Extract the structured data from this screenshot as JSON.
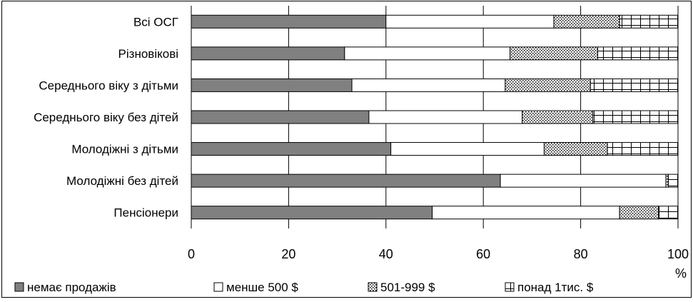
{
  "chart_data": {
    "type": "bar",
    "orientation": "horizontal",
    "stacked": true,
    "categories": [
      "Всі ОСГ",
      "Різновікові",
      "Середнього віку з дітьми",
      "Середнього віку без дітей",
      "Молодіжні з дітьми",
      "Молодіжні без дітей",
      "Пенсіонери"
    ],
    "series": [
      {
        "name": "немає продажів",
        "values": [
          40,
          31.5,
          33,
          36.5,
          41,
          63.5,
          49.5
        ],
        "color": "#808080",
        "pattern": "solid"
      },
      {
        "name": "менше 500 $",
        "values": [
          34.5,
          34,
          31.5,
          31.5,
          31.5,
          34,
          38.5
        ],
        "color": "#ffffff",
        "pattern": "solid"
      },
      {
        "name": "501-999 $",
        "values": [
          13.5,
          18,
          17.5,
          14.5,
          13,
          0.5,
          8
        ],
        "color": "#ffffff",
        "pattern": "dots"
      },
      {
        "name": "понад 1тис. $",
        "values": [
          12,
          16.5,
          18,
          17.5,
          14.5,
          2,
          4
        ],
        "color": "#ffffff",
        "pattern": "grid"
      }
    ],
    "xlim": [
      0,
      100
    ],
    "xticks": [
      "0",
      "20",
      "40",
      "60",
      "80",
      "100"
    ],
    "xunit": "%",
    "grid": true,
    "legend": "bottom"
  }
}
